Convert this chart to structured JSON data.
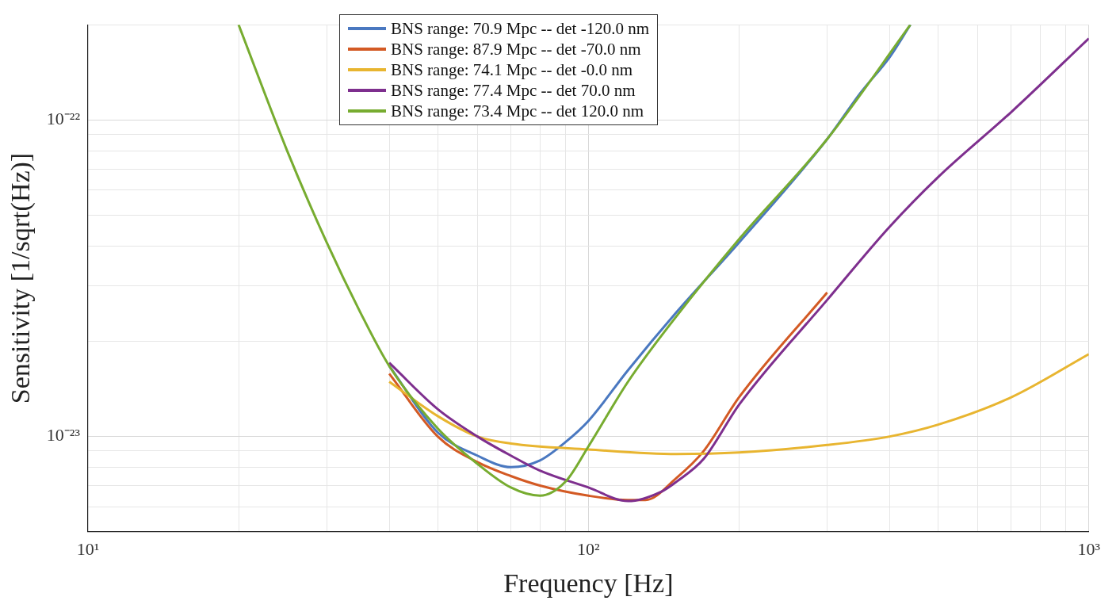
{
  "chart_data": {
    "type": "line",
    "xlabel": "Frequency [Hz]",
    "ylabel": "Sensitivity [1/sqrt(Hz)]",
    "log": "xy",
    "grid": true,
    "legend": "top",
    "marker": "none",
    "line_style": "solid",
    "xlim": [
      10,
      1000
    ],
    "ylim": [
      5e-24,
      2e-22
    ],
    "xticks": [
      {
        "value": 10,
        "label": "10¹"
      },
      {
        "value": 20,
        "label": null
      },
      {
        "value": 30,
        "label": null
      },
      {
        "value": 40,
        "label": null
      },
      {
        "value": 50,
        "label": null
      },
      {
        "value": 60,
        "label": null
      },
      {
        "value": 70,
        "label": null
      },
      {
        "value": 80,
        "label": null
      },
      {
        "value": 90,
        "label": null
      },
      {
        "value": 100,
        "label": "10²"
      },
      {
        "value": 200,
        "label": null
      },
      {
        "value": 300,
        "label": null
      },
      {
        "value": 400,
        "label": null
      },
      {
        "value": 500,
        "label": null
      },
      {
        "value": 600,
        "label": null
      },
      {
        "value": 700,
        "label": null
      },
      {
        "value": 800,
        "label": null
      },
      {
        "value": 900,
        "label": null
      },
      {
        "value": 1000,
        "label": "10³"
      }
    ],
    "yticks": [
      {
        "value": 6e-24,
        "label": null
      },
      {
        "value": 7e-24,
        "label": null
      },
      {
        "value": 8e-24,
        "label": null
      },
      {
        "value": 9e-24,
        "label": null
      },
      {
        "value": 1e-23,
        "label": "10⁻²³"
      },
      {
        "value": 2e-23,
        "label": null
      },
      {
        "value": 3e-23,
        "label": null
      },
      {
        "value": 4e-23,
        "label": null
      },
      {
        "value": 5e-23,
        "label": null
      },
      {
        "value": 6e-23,
        "label": null
      },
      {
        "value": 7e-23,
        "label": null
      },
      {
        "value": 8e-23,
        "label": null
      },
      {
        "value": 9e-23,
        "label": null
      },
      {
        "value": 1e-22,
        "label": "10⁻²²"
      },
      {
        "value": 2e-22,
        "label": null
      }
    ],
    "series": [
      {
        "name": "BNS range: 70.9 Mpc -- det -120.0 nm",
        "color": "#4a78c0",
        "x": [
          40,
          50,
          60,
          70,
          80,
          90,
          100,
          120,
          150,
          200,
          300,
          350,
          400,
          440
        ],
        "values": [
          1.67e-23,
          1.03e-23,
          8.7e-24,
          8e-24,
          8.4e-24,
          9.6e-24,
          1.12e-23,
          1.62e-23,
          2.47e-23,
          4.1e-23,
          8.7e-23,
          1.22e-22,
          1.58e-22,
          2e-22
        ]
      },
      {
        "name": "BNS range: 87.9 Mpc -- det -70.0 nm",
        "color": "#d35a24",
        "x": [
          40,
          50,
          60,
          70,
          80,
          100,
          120,
          130,
          150,
          170,
          200,
          300
        ],
        "values": [
          1.58e-23,
          1e-23,
          8.3e-24,
          7.5e-24,
          7e-24,
          6.5e-24,
          6.3e-24,
          6.3e-24,
          7.4e-24,
          9e-24,
          1.33e-23,
          2.85e-23
        ]
      },
      {
        "name": "BNS range: 74.1 Mpc -- det -0.0 nm",
        "color": "#e8b530",
        "x": [
          40,
          50,
          60,
          70,
          100,
          150,
          200,
          300,
          400,
          500,
          700,
          1000
        ],
        "values": [
          1.49e-23,
          1.16e-23,
          1e-23,
          9.5e-24,
          9.1e-24,
          8.8e-24,
          8.9e-24,
          9.4e-24,
          1e-23,
          1.09e-23,
          1.33e-23,
          1.82e-23
        ]
      },
      {
        "name": "BNS range: 77.4 Mpc -- det 70.0 nm",
        "color": "#7e2f8e",
        "x": [
          40,
          50,
          60,
          70,
          80,
          100,
          120,
          140,
          150,
          170,
          200,
          300,
          400,
          500,
          700,
          1000
        ],
        "values": [
          1.71e-23,
          1.22e-23,
          1e-23,
          8.7e-24,
          7.8e-24,
          6.9e-24,
          6.25e-24,
          6.7e-24,
          7.2e-24,
          8.5e-24,
          1.26e-23,
          2.7e-23,
          4.6e-23,
          6.6e-23,
          1.06e-22,
          1.81e-22
        ]
      },
      {
        "name": "BNS range: 73.4 Mpc -- det 120.0 nm",
        "color": "#77ac30",
        "x": [
          20,
          25,
          30,
          35,
          40,
          50,
          60,
          70,
          80,
          90,
          100,
          120,
          150,
          200,
          300,
          440
        ],
        "values": [
          2e-22,
          8e-23,
          4.1e-23,
          2.47e-23,
          1.67e-23,
          1.06e-23,
          8.2e-24,
          6.9e-24,
          6.5e-24,
          7.2e-24,
          9.3e-24,
          1.49e-23,
          2.4e-23,
          4.2e-23,
          8.7e-23,
          2e-22
        ]
      }
    ]
  }
}
